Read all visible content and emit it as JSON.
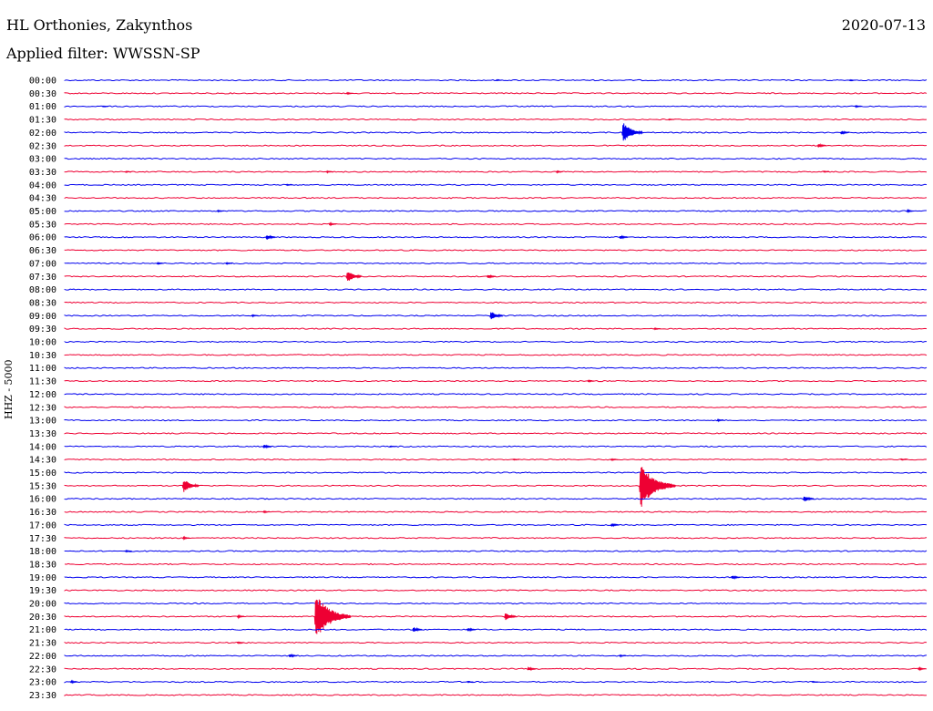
{
  "header": {
    "station": "HL Orthonies, Zakynthos",
    "filter": "Applied filter: WWSSN-SP",
    "date": "2020-07-13"
  },
  "colors": {
    "even_row": "#0000ee",
    "odd_row": "#ee0033"
  },
  "chart_data": {
    "type": "line",
    "title": "",
    "ylabel": "HHZ - 5000",
    "xlabel": "",
    "x_unit": "minutes within the 30-minute row",
    "x_range": [
      0,
      30
    ],
    "grid": false,
    "legend": "none",
    "rows": [
      {
        "label": "00:00",
        "events": [
          {
            "t": 15.0,
            "amp": 1
          },
          {
            "t": 27.3,
            "amp": 1
          }
        ]
      },
      {
        "label": "00:30",
        "events": [
          {
            "t": 9.8,
            "amp": 1.5
          }
        ]
      },
      {
        "label": "01:00",
        "events": [
          {
            "t": 1.3,
            "amp": 1
          },
          {
            "t": 27.5,
            "amp": 1.5
          }
        ]
      },
      {
        "label": "01:30",
        "events": [
          {
            "t": 21.0,
            "amp": 1
          }
        ]
      },
      {
        "label": "02:00",
        "events": [
          {
            "t": 19.4,
            "amp": 14
          },
          {
            "t": 27.0,
            "amp": 3
          }
        ]
      },
      {
        "label": "02:30",
        "events": [
          {
            "t": 26.2,
            "amp": 3
          }
        ]
      },
      {
        "label": "03:00",
        "events": []
      },
      {
        "label": "03:30",
        "events": [
          {
            "t": 2.1,
            "amp": 1
          },
          {
            "t": 9.1,
            "amp": 1.5
          },
          {
            "t": 17.1,
            "amp": 1.5
          },
          {
            "t": 26.4,
            "amp": 1
          }
        ]
      },
      {
        "label": "04:00",
        "events": [
          {
            "t": 7.7,
            "amp": 1
          }
        ]
      },
      {
        "label": "04:30",
        "events": []
      },
      {
        "label": "05:00",
        "events": [
          {
            "t": 5.3,
            "amp": 1.5
          },
          {
            "t": 29.3,
            "amp": 2
          }
        ]
      },
      {
        "label": "05:30",
        "events": [
          {
            "t": 9.2,
            "amp": 2
          }
        ]
      },
      {
        "label": "06:00",
        "events": [
          {
            "t": 7.0,
            "amp": 4
          },
          {
            "t": 19.3,
            "amp": 3
          }
        ]
      },
      {
        "label": "06:30",
        "events": []
      },
      {
        "label": "07:00",
        "events": [
          {
            "t": 3.2,
            "amp": 1.5
          },
          {
            "t": 5.6,
            "amp": 1.5
          }
        ]
      },
      {
        "label": "07:30",
        "events": [
          {
            "t": 9.8,
            "amp": 9
          },
          {
            "t": 14.7,
            "amp": 3
          }
        ]
      },
      {
        "label": "08:00",
        "events": []
      },
      {
        "label": "08:30",
        "events": []
      },
      {
        "label": "09:00",
        "events": [
          {
            "t": 6.5,
            "amp": 1.5
          },
          {
            "t": 14.8,
            "amp": 7
          }
        ]
      },
      {
        "label": "09:30",
        "events": [
          {
            "t": 20.5,
            "amp": 1.5
          }
        ]
      },
      {
        "label": "10:00",
        "events": []
      },
      {
        "label": "10:30",
        "events": []
      },
      {
        "label": "11:00",
        "events": []
      },
      {
        "label": "11:30",
        "events": [
          {
            "t": 18.2,
            "amp": 1.5
          }
        ]
      },
      {
        "label": "12:00",
        "events": []
      },
      {
        "label": "12:30",
        "events": []
      },
      {
        "label": "13:00",
        "events": [
          {
            "t": 22.7,
            "amp": 1.5
          }
        ]
      },
      {
        "label": "13:30",
        "events": []
      },
      {
        "label": "14:00",
        "events": [
          {
            "t": 6.9,
            "amp": 3
          },
          {
            "t": 11.3,
            "amp": 1
          }
        ]
      },
      {
        "label": "14:30",
        "events": [
          {
            "t": 15.6,
            "amp": 1
          },
          {
            "t": 19.0,
            "amp": 1.5
          },
          {
            "t": 29.1,
            "amp": 1
          }
        ]
      },
      {
        "label": "15:00",
        "events": []
      },
      {
        "label": "15:30",
        "events": [
          {
            "t": 4.1,
            "amp": 10
          },
          {
            "t": 20.0,
            "amp": 28
          }
        ]
      },
      {
        "label": "16:00",
        "events": [
          {
            "t": 25.7,
            "amp": 5
          }
        ]
      },
      {
        "label": "16:30",
        "events": [
          {
            "t": 6.9,
            "amp": 1.5
          }
        ]
      },
      {
        "label": "17:00",
        "events": [
          {
            "t": 19.0,
            "amp": 3
          }
        ]
      },
      {
        "label": "17:30",
        "events": [
          {
            "t": 4.1,
            "amp": 2
          }
        ]
      },
      {
        "label": "18:00",
        "events": [
          {
            "t": 2.1,
            "amp": 1.5
          }
        ]
      },
      {
        "label": "18:30",
        "events": []
      },
      {
        "label": "19:00",
        "events": [
          {
            "t": 23.2,
            "amp": 3
          }
        ]
      },
      {
        "label": "19:30",
        "events": []
      },
      {
        "label": "20:00",
        "events": []
      },
      {
        "label": "20:30",
        "events": [
          {
            "t": 6.0,
            "amp": 2
          },
          {
            "t": 8.7,
            "amp": 28
          },
          {
            "t": 15.3,
            "amp": 6
          }
        ]
      },
      {
        "label": "21:00",
        "events": [
          {
            "t": 12.1,
            "amp": 4
          },
          {
            "t": 14.0,
            "amp": 3
          }
        ]
      },
      {
        "label": "21:30",
        "events": [
          {
            "t": 6.0,
            "amp": 1.5
          }
        ]
      },
      {
        "label": "22:00",
        "events": [
          {
            "t": 7.8,
            "amp": 3
          },
          {
            "t": 19.3,
            "amp": 1.5
          }
        ]
      },
      {
        "label": "22:30",
        "events": [
          {
            "t": 16.1,
            "amp": 3
          },
          {
            "t": 29.7,
            "amp": 2
          }
        ]
      },
      {
        "label": "23:00",
        "events": [
          {
            "t": 0.2,
            "amp": 2
          },
          {
            "t": 14.0,
            "amp": 1
          },
          {
            "t": 26.0,
            "amp": 1
          }
        ]
      },
      {
        "label": "23:30",
        "events": []
      }
    ]
  }
}
